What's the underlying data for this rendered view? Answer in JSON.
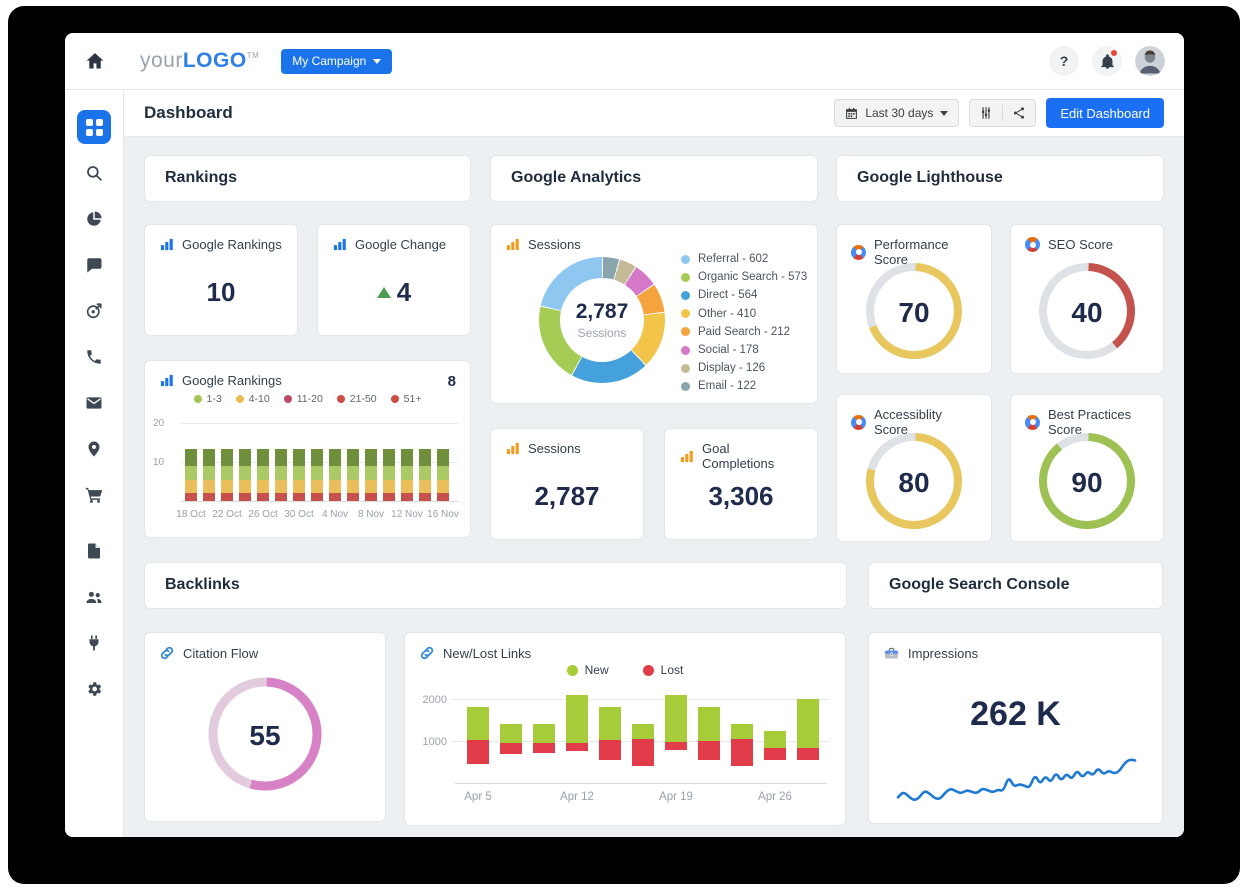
{
  "topbar": {
    "logo_gray": "your",
    "logo_blue": "LOGO",
    "logo_tm": "TM",
    "campaign_button": "My Campaign",
    "help_label": "?"
  },
  "header": {
    "title": "Dashboard",
    "date_range": "Last 30 days",
    "edit_button": "Edit Dashboard"
  },
  "sidebar": {
    "items": [
      "dashboard",
      "search",
      "pie-chart",
      "chat",
      "goal",
      "phone",
      "email",
      "location",
      "cart",
      "file",
      "users",
      "plug",
      "settings"
    ],
    "active": "dashboard"
  },
  "sections": {
    "rankings": {
      "title": "Rankings",
      "kpis": [
        {
          "label": "Google Rankings",
          "icon": "bar-chart-blue",
          "value": "10"
        },
        {
          "label": "Google Change",
          "icon": "bar-chart-blue",
          "value": "4",
          "delta_up": true
        }
      ]
    },
    "google_analytics": {
      "title": "Google Analytics",
      "kpis": [
        {
          "label": "Sessions",
          "icon": "bar-chart-orange",
          "value": "2,787"
        },
        {
          "label": "Goal Completions",
          "icon": "bar-chart-orange",
          "value": "3,306"
        }
      ]
    },
    "google_lighthouse": {
      "title": "Google Lighthouse",
      "track_color": "#dee2e6",
      "gauges": [
        {
          "label": "Performance Score",
          "icon": "lighthouse",
          "value": 70,
          "color": "#e8c75f"
        },
        {
          "label": "SEO Score",
          "icon": "lighthouse",
          "value": 40,
          "color": "#c4524d"
        },
        {
          "label": "Accessiblity Score",
          "icon": "lighthouse",
          "value": 80,
          "color": "#e8c75f"
        },
        {
          "label": "Best Practices Score",
          "icon": "lighthouse",
          "value": 90,
          "color": "#9dc153"
        }
      ]
    },
    "backlinks": {
      "title": "Backlinks",
      "citation": {
        "label": "Citation Flow",
        "icon": "link",
        "value": 55,
        "color": "#d781c6",
        "track_color": "#e2cbdc"
      }
    },
    "google_search_console": {
      "title": "Google Search Console",
      "impressions": {
        "label": "Impressions",
        "icon": "toolbox",
        "value": "262 K"
      }
    }
  },
  "chart_data": [
    {
      "id": "sessions_donut",
      "type": "donut",
      "title": "Sessions",
      "icon": "bar-chart-orange",
      "center_value": "2,787",
      "center_label": "Sessions",
      "total": 2787,
      "legend_position": "right",
      "segments": [
        {
          "label": "Referral",
          "value": 602,
          "color": "#8ec8f0"
        },
        {
          "label": "Organic Search",
          "value": 573,
          "color": "#a5cd55"
        },
        {
          "label": "Direct",
          "value": 564,
          "color": "#44a1dc"
        },
        {
          "label": "Other",
          "value": 410,
          "color": "#f2c54a"
        },
        {
          "label": "Paid Search",
          "value": 212,
          "color": "#f4a33d"
        },
        {
          "label": "Social",
          "value": 178,
          "color": "#d678c8"
        },
        {
          "label": "Display",
          "value": 126,
          "color": "#c5ba97"
        },
        {
          "label": "Email",
          "value": 122,
          "color": "#88a6ac"
        }
      ],
      "draw_order": "clockwise from top, reverse of legend order"
    },
    {
      "id": "google_rankings",
      "type": "stacked-bar",
      "title": "Google Rankings",
      "icon": "bar-chart-blue",
      "badge": "8",
      "legend": [
        {
          "label": "1-3",
          "color": "#a4c455"
        },
        {
          "label": "4-10",
          "color": "#e9bd55"
        },
        {
          "label": "11-20",
          "color": "#bb4a63"
        },
        {
          "label": "21-50",
          "color": "#cd4d45"
        },
        {
          "label": "51+",
          "color": "#cd4d45"
        }
      ],
      "ylim": [
        0,
        20
      ],
      "y_ticks": [
        10,
        20
      ],
      "bar_count": 15,
      "stack_per_bar_uniform": true,
      "stack_bottom_to_top": [
        {
          "color": "#c8504b",
          "value": 2
        },
        {
          "color": "#eabf5b",
          "value": 3.5
        },
        {
          "color": "#abc964",
          "value": 3.5
        },
        {
          "color": "#6f8f3d",
          "value": 4.3
        }
      ],
      "x_labels": [
        "18 Oct",
        "22 Oct",
        "26 Oct",
        "30 Oct",
        "4 Nov",
        "8 Nov",
        "12 Nov",
        "16 Nov"
      ],
      "x_labels_every": 2
    },
    {
      "id": "new_lost_links",
      "type": "floating-stacked-bar",
      "title": "New/Lost Links",
      "icon": "link",
      "legend": [
        {
          "label": "New",
          "color": "#a6cc39"
        },
        {
          "label": "Lost",
          "color": "#e23c4a"
        }
      ],
      "y_ticks": [
        1000,
        2000
      ],
      "ylim": [
        0,
        2200
      ],
      "bars": [
        {
          "top": 1800,
          "mid": 1025,
          "bottom": 450
        },
        {
          "top": 1400,
          "mid": 950,
          "bottom": 700
        },
        {
          "top": 1400,
          "mid": 950,
          "bottom": 725
        },
        {
          "top": 2100,
          "mid": 950,
          "bottom": 750
        },
        {
          "top": 1800,
          "mid": 1025,
          "bottom": 550
        },
        {
          "top": 1400,
          "mid": 1050,
          "bottom": 400
        },
        {
          "top": 2100,
          "mid": 975,
          "bottom": 775
        },
        {
          "top": 1800,
          "mid": 1000,
          "bottom": 550
        },
        {
          "top": 1400,
          "mid": 1050,
          "bottom": 400
        },
        {
          "top": 1250,
          "mid": 825,
          "bottom": 550
        },
        {
          "top": 2000,
          "mid": 825,
          "bottom": 550
        }
      ],
      "x_labels": [
        {
          "label": "Apr 5",
          "bar": 0
        },
        {
          "label": "Apr 12",
          "bar": 3
        },
        {
          "label": "Apr 19",
          "bar": 6
        },
        {
          "label": "Apr 26",
          "bar": 9
        }
      ]
    },
    {
      "id": "impressions_sparkline",
      "type": "line",
      "title": "Impressions",
      "value": "262 K",
      "color": "#1f7ad4",
      "points": [
        14,
        24,
        16,
        8,
        13,
        26,
        21,
        12,
        11,
        23,
        30,
        25,
        21,
        27,
        24,
        21,
        30,
        27,
        23,
        28,
        25,
        52,
        33,
        38,
        35,
        31,
        56,
        37,
        54,
        40,
        60,
        43,
        58,
        46,
        64,
        49,
        62,
        53,
        68,
        55,
        63,
        57,
        61,
        76,
        83,
        81
      ]
    }
  ]
}
